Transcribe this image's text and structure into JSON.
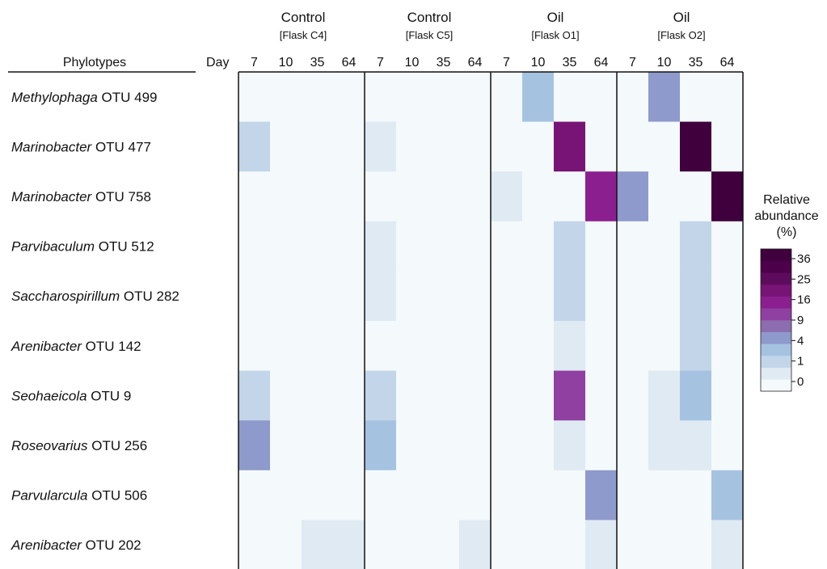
{
  "chart_data": {
    "type": "heatmap",
    "row_header": "Phylotypes",
    "day_header": "Day",
    "groups": [
      {
        "name": "Control",
        "flask": "[Flask C4]"
      },
      {
        "name": "Control",
        "flask": "[Flask C5]"
      },
      {
        "name": "Oil",
        "flask": "[Flask O1]"
      },
      {
        "name": "Oil",
        "flask": "[Flask O2]"
      }
    ],
    "days": [
      "7",
      "10",
      "35",
      "64"
    ],
    "rows": [
      {
        "genus": "Methylophaga",
        "otu": " OTU 499"
      },
      {
        "genus": "Marinobacter",
        "otu": " OTU 477"
      },
      {
        "genus": "Marinobacter",
        "otu": " OTU 758"
      },
      {
        "genus": "Parvibaculum",
        "otu": " OTU 512"
      },
      {
        "genus": "Saccharospirillum",
        "otu": " OTU 282"
      },
      {
        "genus": "Arenibacter",
        "otu": " OTU 142"
      },
      {
        "genus": "Seohaeicola",
        "otu": " OTU 9"
      },
      {
        "genus": "Roseovarius",
        "otu": " OTU 256"
      },
      {
        "genus": "Parvularcula",
        "otu": " OTU 506"
      },
      {
        "genus": "Arenibacter",
        "otu": " OTU 202"
      }
    ],
    "values": [
      [
        0,
        0,
        0,
        0,
        0,
        0,
        0,
        0,
        0,
        5,
        0,
        0,
        0,
        8,
        0,
        0
      ],
      [
        3,
        0,
        0,
        0,
        1,
        0,
        0,
        0,
        0,
        0,
        22,
        0,
        0,
        0,
        40,
        0
      ],
      [
        0,
        0,
        0,
        0,
        0,
        0,
        0,
        0,
        1,
        0,
        0,
        20,
        8,
        0,
        0,
        40
      ],
      [
        0,
        0,
        0,
        0,
        1,
        0,
        0,
        0,
        0,
        0,
        3,
        0,
        0,
        0,
        3,
        0
      ],
      [
        0,
        0,
        0,
        0,
        1,
        0,
        0,
        0,
        0,
        0,
        3,
        0,
        0,
        0,
        3,
        0
      ],
      [
        0,
        0,
        0,
        0,
        0,
        0,
        0,
        0,
        0,
        0,
        1,
        0,
        0,
        0,
        3,
        0
      ],
      [
        3,
        0,
        0,
        0,
        3,
        0,
        0,
        0,
        0,
        0,
        14,
        0,
        0,
        1,
        5,
        0
      ],
      [
        8,
        0,
        0,
        0,
        5,
        0,
        0,
        0,
        0,
        0,
        1,
        0,
        0,
        1,
        1,
        0
      ],
      [
        0,
        0,
        0,
        0,
        0,
        0,
        0,
        0,
        0,
        0,
        0,
        8,
        0,
        0,
        0,
        5
      ],
      [
        0,
        0,
        1,
        1,
        0,
        0,
        0,
        1,
        0,
        0,
        0,
        1,
        0,
        0,
        0,
        1
      ]
    ],
    "legend": {
      "title": [
        "Relative",
        "abundance",
        "(%)"
      ],
      "ticks": [
        "36",
        "25",
        "16",
        "9",
        "4",
        "1",
        "0"
      ],
      "thresholds": [
        0,
        0.5,
        2,
        4,
        6.5,
        9,
        12.5,
        16,
        20.5,
        25,
        30.5,
        36
      ],
      "colors": [
        "#f4f9fb",
        "#dfeaf3",
        "#c3d5e9",
        "#a5c3e1",
        "#8e9acb",
        "#8c6daf",
        "#8f40a1",
        "#8b1f90",
        "#771476",
        "#5e0b5d",
        "#4d0049",
        "#3f003d"
      ]
    }
  }
}
